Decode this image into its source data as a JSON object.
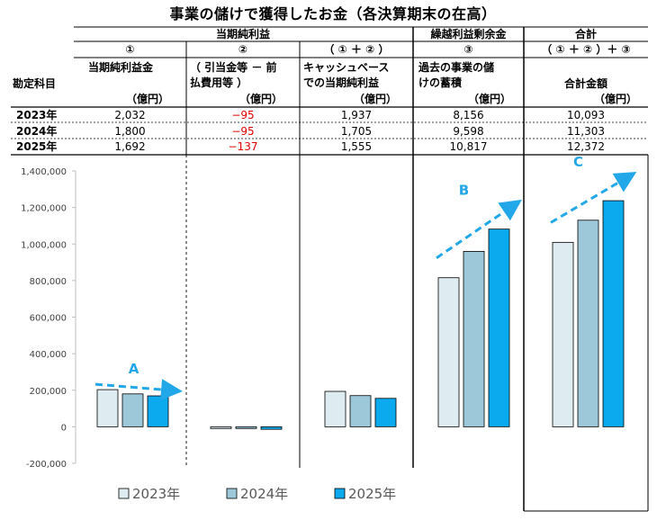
{
  "title": "事業の儲けで獲得したお金（各決算期末の在高）",
  "header": {
    "group1": "当期純利益",
    "group2": "繰越利益剰余金",
    "group3": "合計",
    "sub1": "①",
    "sub2": "②",
    "sub3": "（ ① ＋ ② ）",
    "sub4": "③",
    "sub5": "（ ① ＋ ② ）＋ ③",
    "row_label": "勘定科目",
    "c1_l1": "当期純利益金",
    "c1_unit": "（億円）",
    "c2_l1": "（ 引当金等 － 前",
    "c2_l2": "払費用等 ）",
    "c2_unit": "（億円）",
    "c3_l1": "キャッシュベース",
    "c3_l2": "での当期純利益",
    "c3_unit": "（億円）",
    "c4_l1": "過去の事業の儲",
    "c4_l2": "けの蓄積",
    "c4_unit": "（億円）",
    "c5_l1": "合計金額",
    "c5_unit": "（億円）"
  },
  "table": [
    {
      "year": "2023年",
      "v1": "2,032",
      "v2": "−95",
      "v3": "1,937",
      "v4": "8,156",
      "v5": "10,093"
    },
    {
      "year": "2024年",
      "v1": "1,800",
      "v2": "−95",
      "v3": "1,705",
      "v4": "9,598",
      "v5": "11,303"
    },
    {
      "year": "2025年",
      "v1": "1,692",
      "v2": "−137",
      "v3": "1,555",
      "v4": "10,817",
      "v5": "12,372"
    }
  ],
  "chart_data": {
    "type": "bar",
    "ylim": [
      -200000,
      1400000
    ],
    "yticks": [
      "-200,000",
      "0",
      "200,000",
      "400,000",
      "600,000",
      "800,000",
      "1,000,000",
      "1,200,000",
      "1,400,000"
    ],
    "ytick_values": [
      -200000,
      0,
      200000,
      400000,
      600000,
      800000,
      1000000,
      1200000,
      1400000
    ],
    "groups": [
      "①",
      "②",
      "①+②",
      "③",
      "合計"
    ],
    "series": [
      {
        "name": "2023年",
        "color": "#deebf1",
        "values": [
          203200,
          -9500,
          193700,
          815600,
          1009300
        ]
      },
      {
        "name": "2024年",
        "color": "#9dc8da",
        "values": [
          180000,
          -9500,
          170500,
          959800,
          1130300
        ]
      },
      {
        "name": "2025年",
        "color": "#0ba9ee",
        "values": [
          169200,
          -13700,
          155500,
          1081700,
          1237200
        ]
      }
    ],
    "annotations": [
      {
        "label": "A",
        "group": 0
      },
      {
        "label": "B",
        "group": 3
      },
      {
        "label": "C",
        "group": 4
      }
    ],
    "arrow_color": "#22a8e8",
    "legend_placement": "bottom",
    "grid": false
  }
}
